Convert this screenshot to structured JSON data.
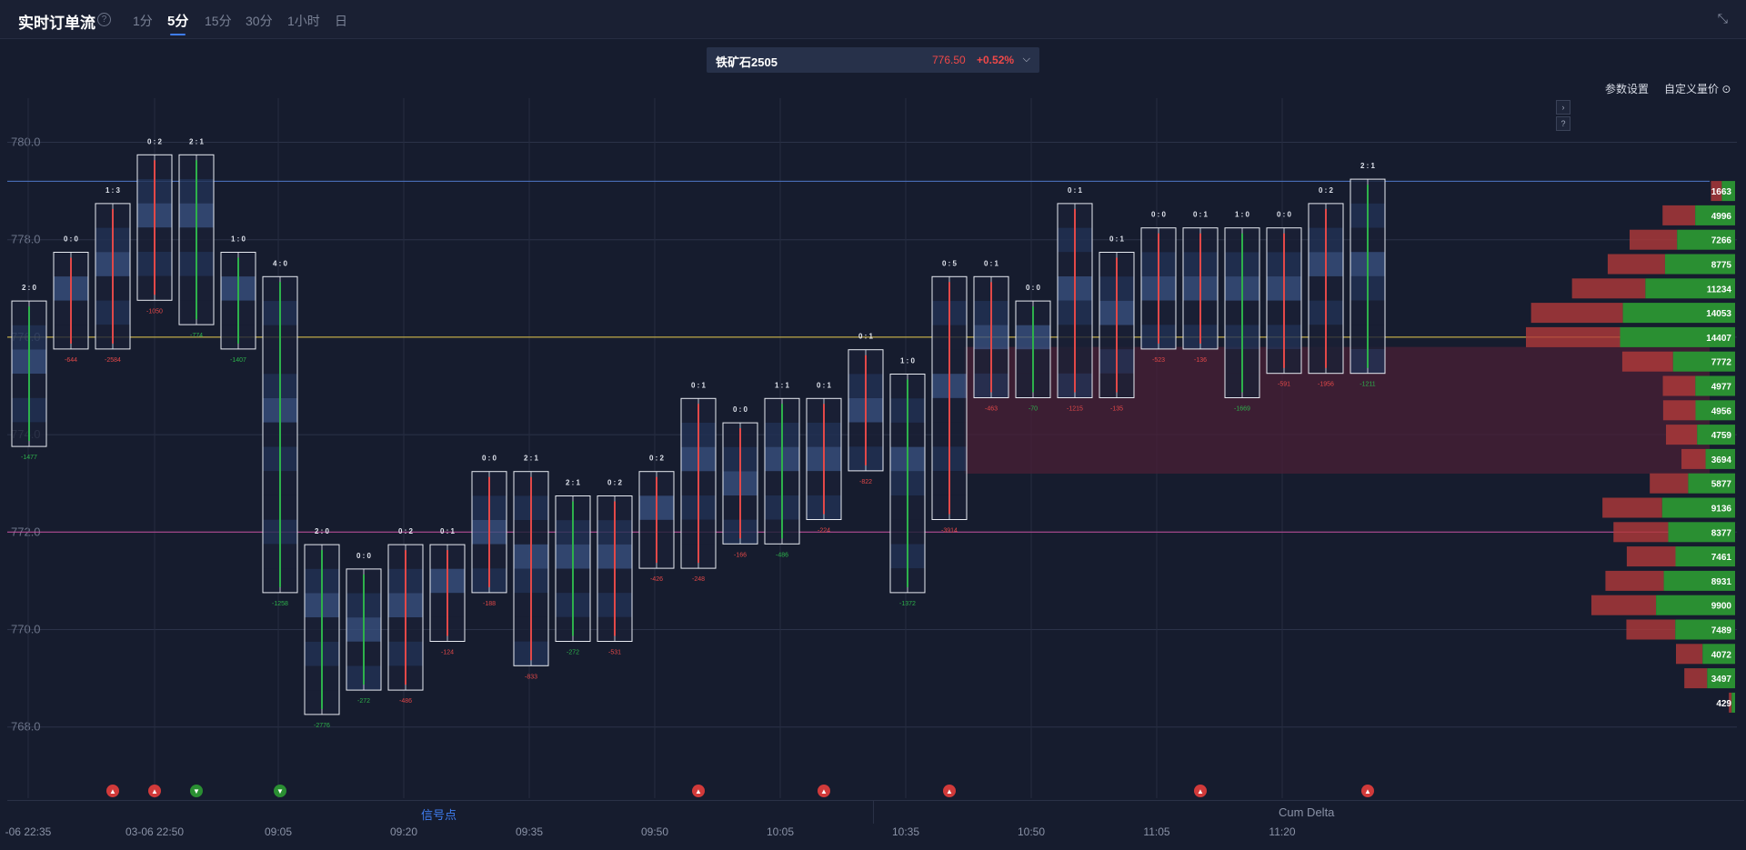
{
  "header": {
    "title": "实时订单流",
    "help_icon": "?",
    "timeframes": [
      {
        "label": "1分",
        "active": false
      },
      {
        "label": "5分",
        "active": true
      },
      {
        "label": "15分",
        "active": false
      },
      {
        "label": "30分",
        "active": false
      },
      {
        "label": "1小时",
        "active": false
      },
      {
        "label": "日",
        "active": false
      }
    ],
    "collapse_icon": "collapse-icon"
  },
  "symbol": {
    "name": "铁矿石2505",
    "price": "776.50",
    "change": "+0.52%"
  },
  "toolbar": {
    "params_label": "参数设置",
    "custom_label": "自定义量价"
  },
  "panels": {
    "signal_label": "信号点",
    "cum_delta_label": "Cum Delta"
  },
  "colors": {
    "background": "#161c2e",
    "up": "#2db14b",
    "down": "#e24848",
    "accent": "#3f7df0"
  },
  "chart_data": {
    "type": "footprint",
    "price_ticks": [
      780.0,
      778.0,
      776.0,
      774.0,
      772.0,
      770.0,
      768.0
    ],
    "time_labels": [
      "-06 22:35",
      "03-06 22:50",
      "09:05",
      "09:20",
      "09:35",
      "09:50",
      "10:05",
      "10:35",
      "10:50",
      "11:05",
      "11:20"
    ],
    "ratio_labels": [
      "2 : 0",
      "0 : 0",
      "1 : 3",
      "0 : 2",
      "2 : 1",
      "1 : 0",
      "4 : 0",
      "2 : 0",
      "0 : 0",
      "0 : 2",
      "0 : 1",
      "0 : 0",
      "2 : 1",
      "2 : 1",
      "0 : 2",
      "0 : 2",
      "0 : 1",
      "0 : 0",
      "1 : 1",
      "0 : 1",
      "0 : 1",
      "1 : 0",
      "0 : 5",
      "0 : 1",
      "0 : 0",
      "0 : 1",
      "0 : 1",
      "0 : 0",
      "0 : 1",
      "1 : 0",
      "0 : 0",
      "0 : 2",
      "2 : 1"
    ],
    "bars": [
      {
        "high": 776.5,
        "low": 774.0,
        "delta": "-1477",
        "up": true
      },
      {
        "high": 777.5,
        "low": 776.0,
        "delta": "-644",
        "up": false
      },
      {
        "high": 778.5,
        "low": 776.0,
        "delta": "-2584",
        "up": false
      },
      {
        "high": 779.5,
        "low": 777.0,
        "delta": "-1050",
        "up": false
      },
      {
        "high": 779.5,
        "low": 776.5,
        "delta": "-774",
        "up": true
      },
      {
        "high": 777.5,
        "low": 776.0,
        "delta": "-1407",
        "up": true
      },
      {
        "high": 777.0,
        "low": 771.0,
        "delta": "-1258",
        "up": true
      },
      {
        "high": 771.5,
        "low": 768.5,
        "delta": "-2776",
        "up": true
      },
      {
        "high": 771.0,
        "low": 769.0,
        "delta": "-272",
        "up": true
      },
      {
        "high": 771.5,
        "low": 769.0,
        "delta": "-486",
        "up": false
      },
      {
        "high": 771.5,
        "low": 770.0,
        "delta": "-124",
        "up": false
      },
      {
        "high": 773.0,
        "low": 771.0,
        "delta": "-188",
        "up": false
      },
      {
        "high": 773.0,
        "low": 769.5,
        "delta": "-833",
        "up": false
      },
      {
        "high": 772.5,
        "low": 770.0,
        "delta": "-272",
        "up": true
      },
      {
        "high": 772.5,
        "low": 770.0,
        "delta": "-531",
        "up": false
      },
      {
        "high": 773.0,
        "low": 771.5,
        "delta": "-426",
        "up": false
      },
      {
        "high": 774.5,
        "low": 771.5,
        "delta": "-248",
        "up": false
      },
      {
        "high": 774.0,
        "low": 772.0,
        "delta": "-166",
        "up": false
      },
      {
        "high": 774.5,
        "low": 772.0,
        "delta": "-486",
        "up": true
      },
      {
        "high": 774.5,
        "low": 772.5,
        "delta": "-224",
        "up": false
      },
      {
        "high": 775.5,
        "low": 773.5,
        "delta": "-822",
        "up": false
      },
      {
        "high": 775.0,
        "low": 771.0,
        "delta": "-1372",
        "up": true
      },
      {
        "high": 777.0,
        "low": 772.5,
        "delta": "-3914",
        "up": false
      },
      {
        "high": 777.0,
        "low": 775.0,
        "delta": "-463",
        "up": false
      },
      {
        "high": 776.5,
        "low": 775.0,
        "delta": "-70",
        "up": true
      },
      {
        "high": 778.5,
        "low": 775.0,
        "delta": "-1215",
        "up": false
      },
      {
        "high": 777.5,
        "low": 775.0,
        "delta": "-135",
        "up": false
      },
      {
        "high": 778.0,
        "low": 776.0,
        "delta": "-523",
        "up": false
      },
      {
        "high": 778.0,
        "low": 776.0,
        "delta": "-136",
        "up": false
      },
      {
        "high": 778.0,
        "low": 775.0,
        "delta": "-1669",
        "up": true
      },
      {
        "high": 778.0,
        "low": 775.5,
        "delta": "-591",
        "up": false
      },
      {
        "high": 778.5,
        "low": 775.5,
        "delta": "-1956",
        "up": false
      },
      {
        "high": 779.0,
        "low": 775.5,
        "delta": "-1211",
        "up": true
      }
    ],
    "volume_profile": [
      {
        "price": 779.0,
        "value": 1663
      },
      {
        "price": 778.5,
        "value": 4996
      },
      {
        "price": 778.0,
        "value": 7266
      },
      {
        "price": 777.5,
        "value": 8775
      },
      {
        "price": 777.0,
        "value": 11234
      },
      {
        "price": 776.5,
        "value": 14053
      },
      {
        "price": 776.0,
        "value": 14407
      },
      {
        "price": 775.5,
        "value": 7772
      },
      {
        "price": 775.0,
        "value": 4977
      },
      {
        "price": 774.5,
        "value": 4956
      },
      {
        "price": 774.0,
        "value": 4759
      },
      {
        "price": 773.5,
        "value": 3694
      },
      {
        "price": 773.0,
        "value": 5877
      },
      {
        "price": 772.5,
        "value": 9136
      },
      {
        "price": 772.0,
        "value": 8377
      },
      {
        "price": 771.5,
        "value": 7461
      },
      {
        "price": 771.0,
        "value": 8931
      },
      {
        "price": 770.5,
        "value": 9900
      },
      {
        "price": 770.0,
        "value": 7489
      },
      {
        "price": 769.5,
        "value": 4072
      },
      {
        "price": 769.0,
        "value": 3497
      },
      {
        "price": 768.5,
        "value": 429
      }
    ],
    "reference_lines": [
      {
        "price": 779.2,
        "color": "#4f77c8"
      },
      {
        "price": 776.0,
        "color": "#e8c94a"
      },
      {
        "price": 772.0,
        "color": "#c24f9c"
      }
    ],
    "signals": [
      {
        "bar": 2,
        "dir": "up"
      },
      {
        "bar": 3,
        "dir": "up"
      },
      {
        "bar": 4,
        "dir": "down"
      },
      {
        "bar": 6,
        "dir": "down"
      },
      {
        "bar": 16,
        "dir": "up"
      },
      {
        "bar": 19,
        "dir": "up"
      },
      {
        "bar": 22,
        "dir": "up"
      },
      {
        "bar": 28,
        "dir": "up"
      },
      {
        "bar": 32,
        "dir": "up"
      }
    ]
  }
}
